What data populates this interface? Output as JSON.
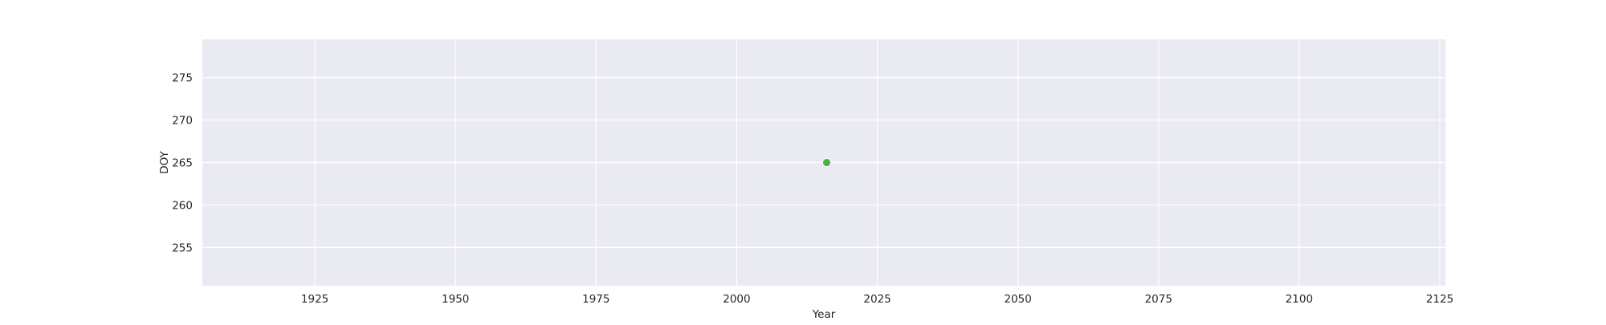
{
  "chart_data": {
    "type": "scatter",
    "title": "",
    "xlabel": "Year",
    "ylabel": "DOY",
    "xlim": [
      1905,
      2126
    ],
    "ylim": [
      250.5,
      279.5
    ],
    "xticks": [
      1925,
      1950,
      1975,
      2000,
      2025,
      2050,
      2075,
      2100,
      2125
    ],
    "yticks": [
      255,
      260,
      265,
      270,
      275
    ],
    "grid": true,
    "series": [
      {
        "color": "#4caf50",
        "points": [
          {
            "x": 2016,
            "y": 265
          }
        ]
      }
    ]
  },
  "colors": {
    "plot_background": "#eaeaf2",
    "grid": "#ffffff",
    "text": "#262626"
  }
}
